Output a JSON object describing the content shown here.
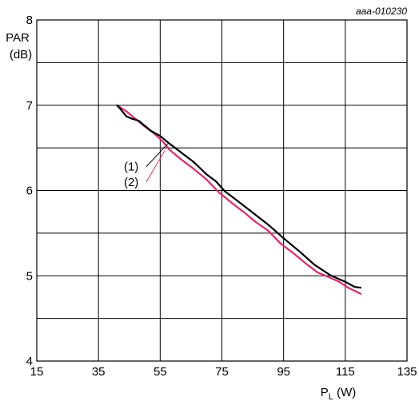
{
  "chart_data": {
    "type": "line",
    "reference_code": "aaa-010230",
    "xlabel_main": "P",
    "xlabel_sub": "L",
    "xlabel_unit": " (W)",
    "ylabel_line1": "PAR",
    "ylabel_line2": "(dB)",
    "xlim": [
      15,
      135
    ],
    "ylim": [
      4,
      8
    ],
    "x_ticks": [
      15,
      35,
      55,
      75,
      95,
      115,
      135
    ],
    "y_ticks": [
      4,
      5,
      6,
      7,
      8
    ],
    "grid": true,
    "colors": {
      "series1": "#000000",
      "series2": "#e0266e"
    },
    "series": [
      {
        "label": "(1)",
        "color": "#000000",
        "points": [
          [
            41,
            7.0
          ],
          [
            42,
            6.96
          ],
          [
            44,
            6.87
          ],
          [
            46,
            6.84
          ],
          [
            48,
            6.82
          ],
          [
            50,
            6.76
          ],
          [
            52,
            6.7
          ],
          [
            55,
            6.64
          ],
          [
            58,
            6.55
          ],
          [
            62,
            6.44
          ],
          [
            66,
            6.33
          ],
          [
            70,
            6.19
          ],
          [
            73,
            6.11
          ],
          [
            76,
            5.99
          ],
          [
            80,
            5.88
          ],
          [
            85,
            5.74
          ],
          [
            90,
            5.6
          ],
          [
            95,
            5.44
          ],
          [
            100,
            5.29
          ],
          [
            105,
            5.13
          ],
          [
            110,
            5.01
          ],
          [
            113,
            4.96
          ],
          [
            115,
            4.93
          ],
          [
            118,
            4.87
          ],
          [
            120,
            4.86
          ]
        ]
      },
      {
        "label": "(2)",
        "color": "#e0266e",
        "points": [
          [
            41,
            7.0
          ],
          [
            44,
            6.93
          ],
          [
            47,
            6.84
          ],
          [
            50,
            6.75
          ],
          [
            53,
            6.67
          ],
          [
            56,
            6.57
          ],
          [
            58,
            6.48
          ],
          [
            62,
            6.36
          ],
          [
            66,
            6.25
          ],
          [
            70,
            6.13
          ],
          [
            74,
            5.98
          ],
          [
            78,
            5.86
          ],
          [
            82,
            5.75
          ],
          [
            86,
            5.63
          ],
          [
            90,
            5.53
          ],
          [
            94,
            5.38
          ],
          [
            98,
            5.27
          ],
          [
            102,
            5.15
          ],
          [
            106,
            5.04
          ],
          [
            110,
            4.98
          ],
          [
            113,
            4.93
          ],
          [
            116,
            4.86
          ],
          [
            120,
            4.79
          ]
        ]
      }
    ]
  }
}
